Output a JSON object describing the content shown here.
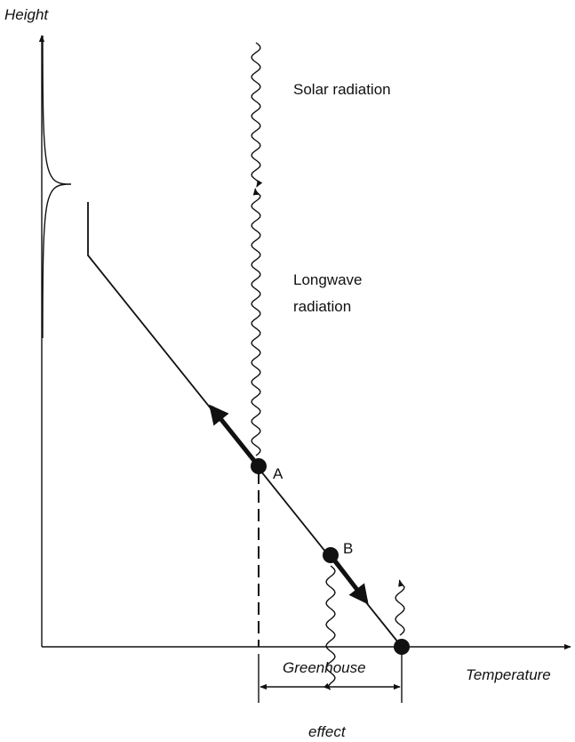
{
  "axes": {
    "y_label": "Height",
    "x_label": "Temperature"
  },
  "radiation": {
    "solar": "Solar radiation",
    "longwave": [
      "Longwave",
      "radiation"
    ]
  },
  "points": {
    "a": "A",
    "b": "B"
  },
  "greenhouse": [
    "Greenhouse",
    "effect"
  ]
}
